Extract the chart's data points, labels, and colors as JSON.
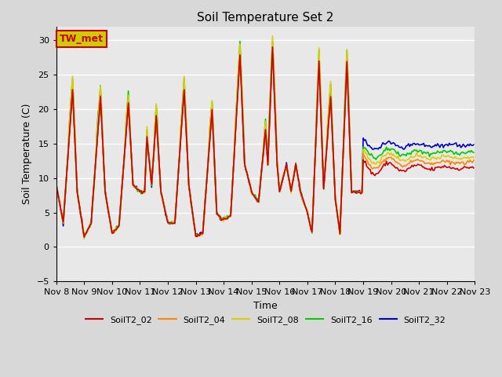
{
  "title": "Soil Temperature Set 2",
  "xlabel": "Time",
  "ylabel": "Soil Temperature (C)",
  "ylim": [
    -5,
    32
  ],
  "yticks": [
    -5,
    0,
    5,
    10,
    15,
    20,
    25,
    30
  ],
  "bg_color": "#e0e0e0",
  "series_colors": [
    "#cc0000",
    "#ff8800",
    "#ddcc00",
    "#00cc00",
    "#0000cc"
  ],
  "series_labels": [
    "SoilT2_02",
    "SoilT2_04",
    "SoilT2_08",
    "SoilT2_16",
    "SoilT2_32"
  ],
  "annotation_text": "TW_met",
  "annotation_fg": "#cc0000",
  "annotation_bg": "#cccc00"
}
